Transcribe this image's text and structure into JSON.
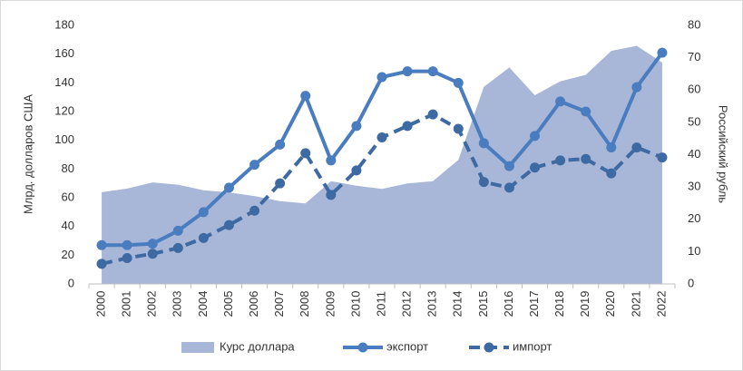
{
  "chart_data": {
    "type": "line",
    "y_label": "Млрд. долларов США",
    "y2_label": "Российский рубль",
    "categories": [
      "2000",
      "2001",
      "2002",
      "2003",
      "2004",
      "2005",
      "2006",
      "2007",
      "2008",
      "2009",
      "2010",
      "2011",
      "2012",
      "2013",
      "2014",
      "2015",
      "2016",
      "2017",
      "2018",
      "2019",
      "2020",
      "2021",
      "2022"
    ],
    "series": [
      {
        "name": "Курс доллара",
        "kind": "area",
        "axis": "y2",
        "color": "#a8b6d8",
        "values": [
          28.4,
          29.5,
          31.4,
          30.7,
          29,
          28.3,
          27.2,
          25.6,
          24.9,
          31.8,
          30.4,
          29.4,
          31.1,
          31.8,
          38.4,
          61,
          67,
          58.4,
          62.7,
          64.7,
          72.1,
          73.7,
          68.5
        ]
      },
      {
        "name": "экспорт",
        "kind": "line",
        "color": "#4a7dc0",
        "dashed": false,
        "values": [
          27,
          27,
          28,
          37,
          50,
          67,
          83,
          97,
          131,
          86,
          110,
          144,
          148,
          148,
          140,
          98,
          82,
          103,
          127,
          120,
          95,
          137,
          161
        ]
      },
      {
        "name": "импорт",
        "kind": "line",
        "color": "#3e6aa3",
        "dashed": true,
        "values": [
          14,
          18,
          21,
          25,
          32,
          41,
          51,
          70,
          91,
          62,
          79,
          102,
          110,
          118,
          108,
          71,
          67,
          81,
          86,
          87,
          77,
          95,
          88
        ]
      }
    ],
    "ylim": [
      0,
      180
    ],
    "yticks": [
      0,
      20,
      40,
      60,
      80,
      100,
      120,
      140,
      160,
      180
    ],
    "y2lim": [
      0,
      80
    ],
    "y2ticks": [
      0,
      10,
      20,
      30,
      40,
      50,
      60,
      70,
      80
    ],
    "legend": "bottom"
  }
}
